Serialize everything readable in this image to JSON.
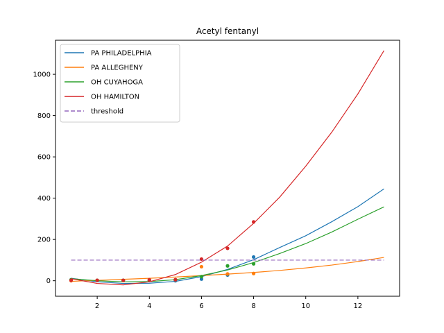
{
  "chart_data": {
    "type": "line",
    "title": "Acetyl fentanyl",
    "xlabel": "",
    "ylabel": "",
    "xlim": [
      0.4,
      13.6
    ],
    "ylim": [
      -75,
      1165
    ],
    "x_ticks": [
      2,
      4,
      6,
      8,
      10,
      12
    ],
    "y_ticks": [
      0,
      200,
      400,
      600,
      800,
      1000
    ],
    "grid": false,
    "legend_position": "top-left",
    "series": [
      {
        "name": "PA PHILADELPHIA",
        "color": "#1f77b4",
        "fit_x": [
          1,
          2,
          3,
          4,
          5,
          6,
          7,
          8,
          9,
          10,
          11,
          12,
          13
        ],
        "fit_y": [
          12,
          -5,
          -13,
          -12,
          -3,
          20,
          55,
          102,
          161,
          218,
          286,
          359,
          445
        ],
        "points_x": [
          1,
          2,
          3,
          4,
          5,
          6,
          7,
          8
        ],
        "points_y": [
          5,
          2,
          2,
          2,
          0,
          8,
          28,
          115
        ]
      },
      {
        "name": "PA ALLEGHENY",
        "color": "#ff7f0e",
        "fit_x": [
          1,
          2,
          3,
          4,
          5,
          6,
          7,
          8,
          9,
          10,
          11,
          12,
          13
        ],
        "fit_y": [
          -3,
          2,
          7,
          12,
          18,
          25,
          32,
          40,
          50,
          62,
          76,
          93,
          113
        ],
        "points_x": [
          1,
          2,
          3,
          4,
          5,
          6,
          7,
          8
        ],
        "points_y": [
          0,
          2,
          2,
          3,
          5,
          68,
          33,
          35
        ]
      },
      {
        "name": "OH CUYAHOGA",
        "color": "#2ca02c",
        "fit_x": [
          1,
          2,
          3,
          4,
          5,
          6,
          7,
          8,
          9,
          10,
          11,
          12,
          13
        ],
        "fit_y": [
          10,
          0,
          -5,
          -4,
          5,
          25,
          52,
          88,
          132,
          180,
          236,
          298,
          358
        ],
        "points_x": [
          1,
          2,
          3,
          4,
          5,
          6,
          7,
          8
        ],
        "points_y": [
          5,
          2,
          2,
          2,
          5,
          20,
          72,
          82
        ]
      },
      {
        "name": "OH HAMILTON",
        "color": "#d62728",
        "fit_x": [
          1,
          2,
          3,
          4,
          5,
          6,
          7,
          8,
          9,
          10,
          11,
          12,
          13
        ],
        "fit_y": [
          10,
          -13,
          -20,
          -5,
          30,
          90,
          168,
          278,
          405,
          555,
          720,
          905,
          1115
        ],
        "points_x": [
          1,
          2,
          3,
          4,
          5,
          6,
          7,
          8
        ],
        "points_y": [
          2,
          2,
          2,
          5,
          5,
          105,
          157,
          285
        ]
      },
      {
        "name": "threshold",
        "color": "#9467bd",
        "dashed": true,
        "fit_x": [
          1,
          13
        ],
        "fit_y": [
          100,
          100
        ],
        "points_x": [],
        "points_y": []
      }
    ]
  }
}
